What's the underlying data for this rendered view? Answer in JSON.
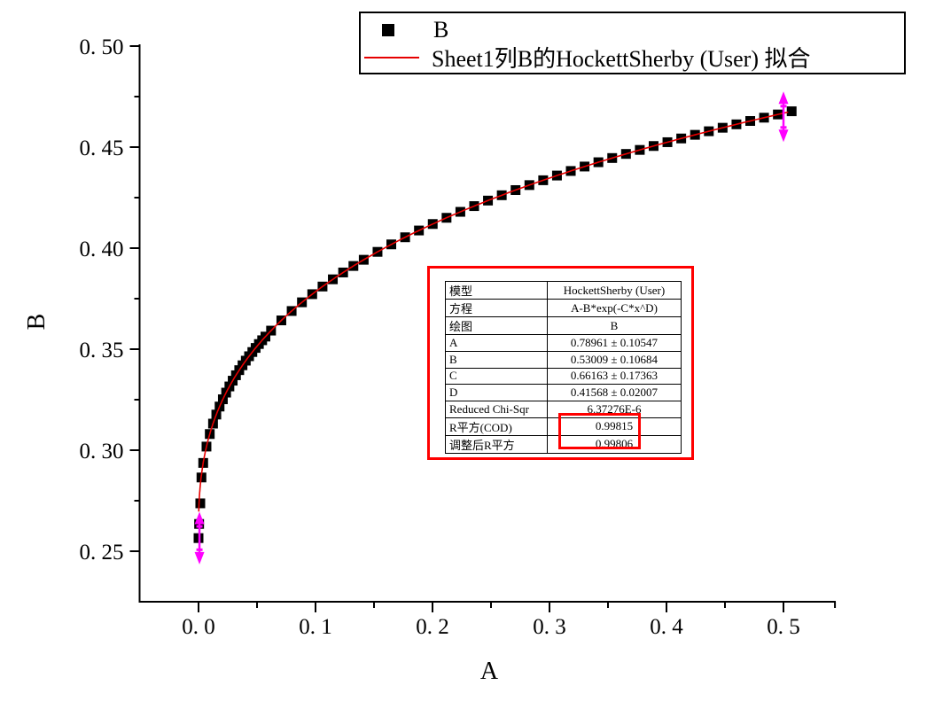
{
  "window": {
    "background": "#ffffff"
  },
  "legend": {
    "items": [
      {
        "marker": "black-square",
        "label": "B"
      },
      {
        "marker": "red-line",
        "label": "Sheet1列B的HockettSherby (User) 拟合"
      }
    ]
  },
  "stats_table": {
    "rows": [
      {
        "label": "模型",
        "value": "HockettSherby (User)",
        "highlighted": false
      },
      {
        "label": "方程",
        "value": "A-B*exp(-C*x^D)",
        "highlighted": false
      },
      {
        "label": "绘图",
        "value": "B",
        "highlighted": false
      },
      {
        "label": "A",
        "value": "0.78961 ± 0.10547",
        "highlighted": false
      },
      {
        "label": "B",
        "value": "0.53009 ± 0.10684",
        "highlighted": false
      },
      {
        "label": "C",
        "value": "0.66163 ± 0.17363",
        "highlighted": false
      },
      {
        "label": "D",
        "value": "0.41568 ± 0.02007",
        "highlighted": false
      },
      {
        "label": "Reduced Chi-Sqr",
        "value": "6.37276E-6",
        "highlighted": false
      },
      {
        "label": "R平方(COD)",
        "value": "0.99815",
        "highlighted": true
      },
      {
        "label": "调整后R平方",
        "value": "0.99806",
        "highlighted": true
      }
    ],
    "highlight_color": "#ff0000"
  },
  "chart_data": {
    "type": "scatter",
    "title": "",
    "xlabel": "A",
    "ylabel": "B",
    "x_axis": {
      "min": -0.05,
      "max": 0.545,
      "ticks": [
        0.0,
        0.1,
        0.2,
        0.3,
        0.4,
        0.5
      ],
      "tick_labels": [
        "0. 0",
        "0. 1",
        "0. 2",
        "0. 3",
        "0. 4",
        "0. 5"
      ],
      "minor_ticks": [
        0.05,
        0.15,
        0.25,
        0.35,
        0.45,
        0.544
      ]
    },
    "y_axis": {
      "min": 0.2245,
      "max": 0.501,
      "ticks": [
        0.25,
        0.3,
        0.35,
        0.4,
        0.45,
        0.5
      ],
      "tick_labels": [
        "0. 25",
        "0. 30",
        "0. 35",
        "0. 40",
        "0. 45",
        "0. 50"
      ],
      "minor_ticks": [
        0.275,
        0.325,
        0.375,
        0.425,
        0.475
      ]
    },
    "series": [
      {
        "name": "B",
        "type": "scatter",
        "marker": "square",
        "marker_size_px": 11,
        "color": "#000000",
        "low_points": [
          [
            0.0,
            0.2565
          ],
          [
            0.0005,
            0.2635
          ],
          [
            0.0015,
            0.2737
          ],
          [
            0.0025,
            0.2865
          ]
        ],
        "sample_segments": [
          {
            "from": 0.004,
            "to": 0.0592,
            "step": 0.0028
          },
          {
            "from": 0.062,
            "to": 0.149,
            "step": 0.0088
          },
          {
            "from": 0.153,
            "to": 0.5075,
            "step": 0.0118
          }
        ]
      },
      {
        "name": "Sheet1列B的HockettSherby (User) 拟合",
        "type": "line",
        "color": "#e60000",
        "model": "HockettSherby: y = A - B*exp(-C*x^D)",
        "params": {
          "A": 0.78961,
          "B": 0.53009,
          "C": 0.66163,
          "D": 0.41568
        },
        "x_range": [
          0.0002,
          0.504
        ]
      }
    ],
    "annotations": [
      {
        "kind": "double-arrow-vertical",
        "x": 0.0008,
        "y_from": 0.2435,
        "y_to": 0.2695,
        "color": "#ff00ff"
      },
      {
        "kind": "double-arrow-vertical",
        "x": 0.5,
        "y_from": 0.4525,
        "y_to": 0.4775,
        "color": "#ff00ff"
      }
    ],
    "legend_position": "top-right",
    "grid": false
  },
  "colors": {
    "axis": "#000000",
    "fit_line": "#e60000",
    "marker": "#000000",
    "annotation_arrow": "#ff00ff",
    "highlight_box": "#ff0000"
  }
}
